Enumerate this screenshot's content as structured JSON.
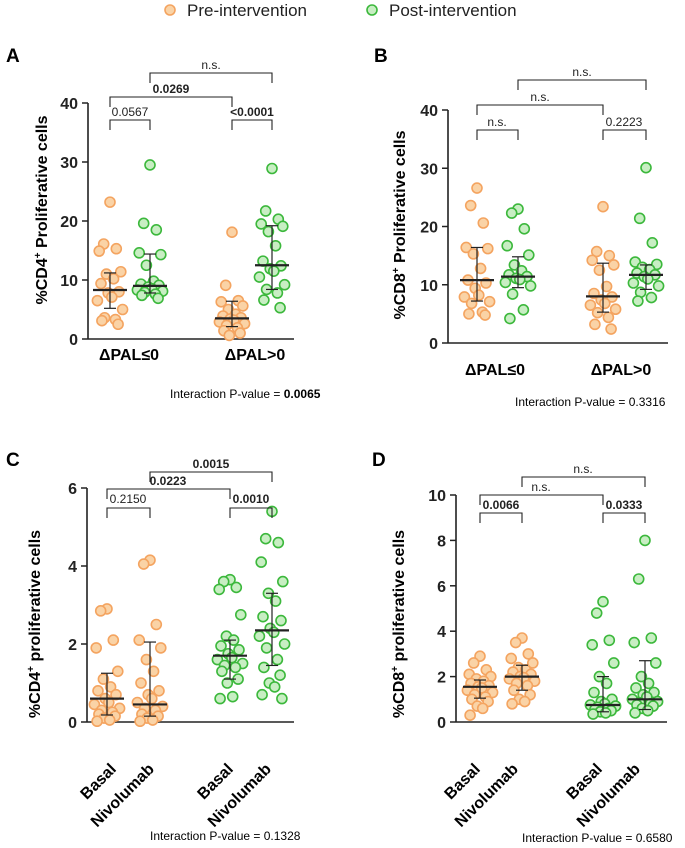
{
  "legend": {
    "items": [
      {
        "label": "Pre-intervention",
        "color": "#F4A460"
      },
      {
        "label": "Post-intervention",
        "color": "#4CC04C"
      }
    ]
  },
  "colors": {
    "pre_edge": "#F4A460",
    "pre_fill": "#FAD3A6",
    "post_edge": "#3CB83C",
    "post_fill": "#C8EEC3"
  },
  "chart_data": [
    {
      "panel": "A",
      "type": "scatter",
      "ylabel": "%CD4+ Proliferative cells",
      "ylabel_main": "%CD4",
      "ylabel_sup": "+",
      "ylabel_rest": " Proliferative cells",
      "ylim": [
        0,
        40
      ],
      "yticks": [
        0,
        10,
        20,
        30,
        40
      ],
      "groups": [
        {
          "label": "ΔPAL≤0",
          "pre": [
            23.2,
            16.1,
            15.3,
            14.9,
            11.4,
            11.0,
            10.2,
            9.4,
            8.0,
            7.8,
            7.1,
            6.5,
            5.0,
            3.6,
            3.3,
            3.1,
            2.5
          ],
          "pre_stats": {
            "median": 8.3,
            "q1": 5.2,
            "q3": 11.2
          },
          "post": [
            29.5,
            19.6,
            18.5,
            14.6,
            14.3,
            12.5,
            9.8,
            9.3,
            9.1,
            8.8,
            8.5,
            8.3,
            8.1,
            7.9,
            7.6,
            7.4,
            6.9
          ],
          "post_stats": {
            "median": 9.0,
            "q1": 7.8,
            "q3": 14.4
          }
        },
        {
          "label": "ΔPAL>0",
          "pre": [
            18.1,
            9.1,
            6.5,
            6.3,
            5.6,
            5.0,
            4.2,
            3.9,
            3.6,
            3.4,
            3.2,
            2.9,
            2.6,
            2.3,
            1.9,
            1.4,
            1.0,
            0.6
          ],
          "pre_stats": {
            "median": 3.5,
            "q1": 2.1,
            "q3": 6.4
          },
          "post": [
            28.9,
            21.7,
            20.3,
            19.5,
            19.1,
            18.2,
            15.8,
            13.2,
            12.4,
            11.9,
            11.5,
            10.5,
            9.2,
            8.4,
            7.8,
            6.6,
            5.3
          ],
          "post_stats": {
            "median": 12.5,
            "q1": 8.4,
            "q3": 19.2
          }
        }
      ],
      "comparisons": [
        {
          "label": "0.0567",
          "bold": false
        },
        {
          "label": "<0.0001",
          "bold": true
        },
        {
          "label": "0.0269",
          "bold": true
        },
        {
          "label": "n.s.",
          "bold": false
        }
      ],
      "interaction": {
        "prefix": "Interaction P-value = ",
        "value": "0.0065",
        "bold": true
      }
    },
    {
      "panel": "B",
      "type": "scatter",
      "ylabel": "%CD8+ Proliferative cells",
      "ylabel_main": "%CD8",
      "ylabel_sup": "+",
      "ylabel_rest": " Proliferative cells",
      "ylim": [
        0,
        40
      ],
      "yticks": [
        0,
        10,
        20,
        30,
        40
      ],
      "groups": [
        {
          "label": "ΔPAL≤0",
          "pre": [
            26.6,
            23.6,
            20.6,
            16.4,
            16.2,
            15.3,
            12.8,
            10.8,
            10.3,
            9.4,
            8.2,
            7.9,
            7.1,
            6.8,
            5.3,
            5.0,
            4.8
          ],
          "pre_stats": {
            "median": 10.8,
            "q1": 7.2,
            "q3": 16.4
          },
          "post": [
            23.0,
            22.3,
            19.6,
            16.7,
            15.1,
            13.4,
            12.4,
            11.7,
            11.4,
            11.1,
            10.9,
            10.4,
            9.8,
            8.4,
            5.7,
            4.2
          ],
          "post_stats": {
            "median": 11.4,
            "q1": 9.5,
            "q3": 14.8
          }
        },
        {
          "label": "ΔPAL>0",
          "pre": [
            23.4,
            15.7,
            15.0,
            14.2,
            13.4,
            12.5,
            9.7,
            8.5,
            7.9,
            7.4,
            6.8,
            6.5,
            5.8,
            5.2,
            4.4,
            3.2,
            2.4
          ],
          "pre_stats": {
            "median": 8.0,
            "q1": 5.3,
            "q3": 13.7
          },
          "post": [
            30.1,
            21.4,
            17.2,
            13.9,
            13.5,
            13.0,
            12.6,
            12.0,
            11.7,
            11.4,
            11.0,
            10.3,
            9.8,
            8.7,
            7.8,
            7.2
          ],
          "post_stats": {
            "median": 11.7,
            "q1": 9.2,
            "q3": 13.4
          }
        }
      ],
      "comparisons": [
        {
          "label": "n.s.",
          "bold": false
        },
        {
          "label": "0.2223",
          "bold": false
        },
        {
          "label": "n.s.",
          "bold": false
        },
        {
          "label": "n.s.",
          "bold": false
        }
      ],
      "interaction": {
        "prefix": "Interaction P-value = ",
        "value": "0.3316",
        "bold": false
      }
    },
    {
      "panel": "C",
      "type": "scatter",
      "ylabel": "%CD4+ proliferative cells",
      "ylabel_main": "%CD4",
      "ylabel_sup": "+",
      "ylabel_rest": " proliferative cells",
      "ylim": [
        0,
        6
      ],
      "yticks": [
        0,
        2,
        4,
        6
      ],
      "groups": [
        {
          "label_1": "Basal",
          "label_2": "Nivolumab",
          "pre": [
            2.9,
            2.85,
            2.1,
            1.9,
            1.3,
            1.1,
            0.9,
            0.8,
            0.7,
            0.6,
            0.5,
            0.45,
            0.35,
            0.3,
            0.25,
            0.2,
            0.15,
            0.1,
            0.05,
            0.02
          ],
          "pre_stats": {
            "median": 0.6,
            "q1": 0.18,
            "q3": 1.25
          },
          "post": [
            4.15,
            4.05,
            2.5,
            2.1,
            1.9,
            1.6,
            1.3,
            1.0,
            0.8,
            0.7,
            0.6,
            0.5,
            0.4,
            0.35,
            0.3,
            0.2,
            0.15,
            0.1,
            0.05,
            0.02
          ],
          "post_stats": {
            "median": 0.45,
            "q1": 0.15,
            "q3": 2.05
          }
        },
        {
          "label_1": "Basal",
          "label_2": "Nivolumab",
          "pre": [
            3.65,
            3.6,
            3.45,
            3.4,
            2.75,
            2.2,
            2.1,
            1.95,
            1.85,
            1.75,
            1.65,
            1.6,
            1.5,
            1.45,
            1.4,
            1.3,
            1.1,
            1.0,
            0.65,
            0.6
          ],
          "pre_stats": {
            "median": 1.7,
            "q1": 1.1,
            "q3": 2.1
          },
          "post": [
            5.4,
            4.7,
            4.6,
            4.1,
            3.6,
            3.3,
            3.1,
            2.7,
            2.6,
            2.4,
            2.3,
            2.2,
            2.0,
            1.9,
            1.6,
            1.4,
            1.2,
            1.0,
            0.9,
            0.7,
            0.6
          ],
          "post_stats": {
            "median": 2.35,
            "q1": 1.45,
            "q3": 3.3
          }
        }
      ],
      "comparisons": [
        {
          "label": "0.2150",
          "bold": false
        },
        {
          "label": "0.0010",
          "bold": true
        },
        {
          "label": "0.0223",
          "bold": true
        },
        {
          "label": "0.0015",
          "bold": true
        }
      ],
      "interaction": {
        "prefix": "Interaction P-value = ",
        "value": "0.1328",
        "bold": false
      }
    },
    {
      "panel": "D",
      "type": "scatter",
      "ylabel": "%CD8+ proliferative cells",
      "ylabel_main": "%CD8",
      "ylabel_sup": "+",
      "ylabel_rest": " proliferative cells",
      "ylim": [
        0,
        10
      ],
      "yticks": [
        0,
        2,
        4,
        6,
        8,
        10
      ],
      "groups": [
        {
          "label_1": "Basal",
          "label_2": "Nivolumab",
          "pre": [
            2.9,
            2.6,
            2.3,
            2.1,
            2.0,
            1.9,
            1.8,
            1.7,
            1.6,
            1.55,
            1.5,
            1.4,
            1.3,
            1.2,
            1.1,
            1.0,
            0.9,
            0.7,
            0.6,
            0.3
          ],
          "pre_stats": {
            "median": 1.55,
            "q1": 1.05,
            "q3": 1.85
          },
          "post": [
            3.7,
            3.5,
            3.0,
            2.8,
            2.6,
            2.4,
            2.3,
            2.2,
            2.1,
            2.0,
            1.95,
            1.9,
            1.8,
            1.7,
            1.6,
            1.4,
            1.2,
            1.0,
            0.9,
            0.8
          ],
          "post_stats": {
            "median": 2.0,
            "q1": 1.4,
            "q3": 2.5
          }
        },
        {
          "label_1": "Basal",
          "label_2": "Nivolumab",
          "pre": [
            5.3,
            4.8,
            3.6,
            3.4,
            2.6,
            2.0,
            1.7,
            1.3,
            1.0,
            0.9,
            0.8,
            0.75,
            0.7,
            0.65,
            0.6,
            0.55,
            0.5,
            0.45,
            0.4,
            0.35
          ],
          "pre_stats": {
            "median": 0.75,
            "q1": 0.45,
            "q3": 2.0
          },
          "post": [
            8.0,
            6.3,
            3.7,
            3.5,
            2.6,
            2.0,
            1.7,
            1.5,
            1.3,
            1.2,
            1.1,
            1.0,
            0.9,
            0.85,
            0.8,
            0.75,
            0.7,
            0.6,
            0.5,
            0.4
          ],
          "post_stats": {
            "median": 1.0,
            "q1": 0.55,
            "q3": 2.7
          }
        }
      ],
      "comparisons": [
        {
          "label": "0.0066",
          "bold": true
        },
        {
          "label": "0.0333",
          "bold": true
        },
        {
          "label": "n.s.",
          "bold": false
        },
        {
          "label": "n.s.",
          "bold": false
        }
      ],
      "interaction": {
        "prefix": "Interaction P-value = ",
        "value": "0.6580",
        "bold": false
      }
    }
  ]
}
